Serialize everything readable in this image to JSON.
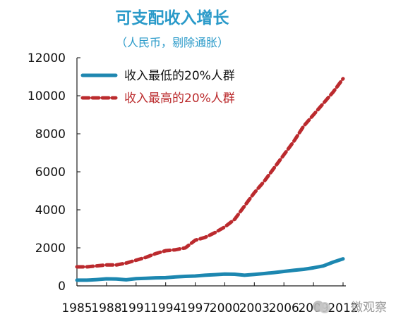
{
  "chart_data": {
    "type": "line",
    "title": "可支配收入增长",
    "subtitle": "（人民币，剔除通胀）",
    "xlabel": "",
    "ylabel": "",
    "x_ticks": [
      "1985",
      "1988",
      "1991",
      "1994",
      "1997",
      "2000",
      "2003",
      "2006",
      "2009",
      "2012"
    ],
    "y_ticks": [
      0,
      2000,
      4000,
      6000,
      8000,
      10000,
      12000
    ],
    "ylim": [
      0,
      12000
    ],
    "xlim": [
      1985,
      2012
    ],
    "grid": false,
    "legend_position": "top-left",
    "series": [
      {
        "name": "收入最低的20%人群",
        "color": "#1f87b0",
        "line_style": "solid",
        "x": [
          1985,
          1986,
          1987,
          1988,
          1989,
          1990,
          1991,
          1992,
          1993,
          1994,
          1995,
          1996,
          1997,
          1998,
          1999,
          2000,
          2001,
          2002,
          2003,
          2004,
          2005,
          2006,
          2007,
          2008,
          2009,
          2010,
          2011,
          2012
        ],
        "y": [
          300,
          300,
          330,
          370,
          360,
          320,
          380,
          400,
          420,
          430,
          470,
          500,
          520,
          560,
          590,
          620,
          610,
          560,
          600,
          650,
          700,
          760,
          820,
          870,
          950,
          1050,
          1250,
          1420
        ]
      },
      {
        "name": "收入最高的20%人群",
        "color": "#bb2b2d",
        "line_style": "dashed",
        "x": [
          1985,
          1986,
          1987,
          1988,
          1989,
          1990,
          1991,
          1992,
          1993,
          1994,
          1995,
          1996,
          1997,
          1998,
          1999,
          2000,
          2001,
          2002,
          2003,
          2004,
          2005,
          2006,
          2007,
          2008,
          2009,
          2010,
          2011,
          2012
        ],
        "y": [
          1000,
          1000,
          1050,
          1100,
          1100,
          1200,
          1350,
          1500,
          1700,
          1850,
          1900,
          2000,
          2400,
          2550,
          2800,
          3100,
          3500,
          4200,
          4900,
          5500,
          6200,
          6900,
          7600,
          8400,
          9000,
          9600,
          10200,
          10900
        ]
      }
    ]
  },
  "watermark": {
    "text": "微观察"
  }
}
